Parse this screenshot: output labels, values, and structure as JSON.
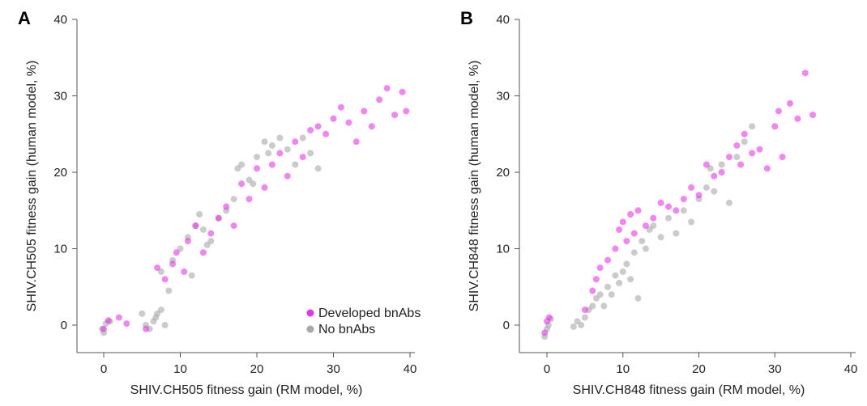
{
  "colors": {
    "developed": "#e535e8",
    "no_bnabs": "#a8a8a8",
    "axis": "#555555"
  },
  "legend": {
    "developed_label": "Developed bnAbs",
    "no_label": "No bnAbs"
  },
  "chart_data": [
    {
      "type": "scatter",
      "panel": "A",
      "xlabel": "SHIV.CH505 fitness gain (RM model, %)",
      "ylabel": "SHIV.CH505 fitness gain (human model, %)",
      "xlim": [
        0,
        40
      ],
      "ylim": [
        0,
        40
      ],
      "xticks": [
        "0",
        "10",
        "20",
        "30",
        "40"
      ],
      "yticks": [
        "0",
        "10",
        "20",
        "30",
        "40"
      ],
      "legend_position": "bottom-right",
      "series": [
        {
          "name": "Developed bnAbs",
          "x": [
            0.0,
            0.6,
            2.0,
            3.0,
            5.5,
            7.0,
            8.0,
            9.0,
            9.5,
            10.5,
            11.0,
            12.0,
            13.0,
            14.0,
            15.0,
            16.0,
            17.0,
            18.0,
            19.0,
            20.0,
            21.0,
            22.0,
            23.0,
            24.0,
            25.0,
            26.0,
            27.0,
            28.0,
            29.0,
            30.0,
            31.0,
            32.0,
            33.0,
            34.0,
            35.0,
            36.0,
            37.0,
            38.0,
            39.0,
            39.5
          ],
          "y": [
            -0.5,
            0.6,
            1.0,
            0.2,
            -0.5,
            7.5,
            6.0,
            8.0,
            9.5,
            7.0,
            11.0,
            13.0,
            9.5,
            12.0,
            14.0,
            15.5,
            13.0,
            18.5,
            16.5,
            20.5,
            18.0,
            21.0,
            22.5,
            19.5,
            24.0,
            22.0,
            25.5,
            26.0,
            25.0,
            27.0,
            28.5,
            26.5,
            24.0,
            28.0,
            26.0,
            29.5,
            31.0,
            27.5,
            30.5,
            28.0
          ]
        },
        {
          "name": "No bnAbs",
          "x": [
            -0.2,
            0.0,
            0.3,
            0.8,
            5.0,
            5.5,
            6.0,
            6.5,
            7.0,
            7.5,
            8.0,
            7.5,
            9.0,
            10.0,
            11.0,
            12.0,
            12.5,
            13.0,
            14.0,
            15.0,
            16.0,
            17.5,
            18.0,
            19.0,
            20.0,
            21.0,
            22.0,
            23.0,
            24.0,
            25.0,
            26.0,
            27.0,
            28.0,
            11.5,
            13.5,
            8.5,
            6.8,
            17.0,
            19.5,
            21.5
          ],
          "y": [
            -0.5,
            -1.0,
            0.2,
            0.5,
            1.5,
            0.0,
            -0.5,
            0.5,
            1.5,
            2.0,
            0.0,
            7.0,
            8.5,
            10.0,
            11.5,
            13.0,
            14.5,
            12.5,
            11.0,
            14.0,
            15.0,
            20.5,
            21.0,
            19.0,
            22.0,
            24.0,
            23.5,
            24.5,
            23.0,
            21.0,
            24.5,
            22.5,
            20.5,
            6.5,
            10.5,
            4.5,
            1.0,
            16.5,
            18.5,
            22.5
          ]
        }
      ]
    },
    {
      "type": "scatter",
      "panel": "B",
      "xlabel": "SHIV.CH848 fitness gain (RM model, %)",
      "ylabel": "SHIV.CH848 fitness gain (human model, %)",
      "xlim": [
        0,
        40
      ],
      "ylim": [
        0,
        40
      ],
      "xticks": [
        "0",
        "10",
        "20",
        "30",
        "40"
      ],
      "yticks": [
        "0",
        "10",
        "20",
        "30",
        "40"
      ],
      "series": [
        {
          "name": "Developed bnAbs",
          "x": [
            -0.3,
            0.0,
            0.3,
            5.0,
            6.0,
            6.5,
            7.0,
            8.0,
            9.0,
            9.5,
            10.0,
            10.5,
            11.0,
            11.5,
            12.0,
            13.0,
            14.0,
            15.0,
            16.0,
            17.0,
            18.0,
            19.0,
            20.0,
            21.0,
            22.0,
            23.0,
            24.0,
            25.0,
            25.5,
            26.0,
            27.0,
            28.0,
            29.0,
            30.0,
            30.5,
            31.0,
            32.0,
            33.0,
            34.0,
            35.0
          ],
          "y": [
            -1.0,
            0.5,
            1.0,
            2.0,
            4.5,
            6.0,
            7.5,
            8.5,
            10.0,
            12.5,
            13.5,
            11.0,
            14.5,
            12.0,
            15.0,
            13.0,
            14.0,
            16.0,
            15.5,
            15.0,
            16.5,
            18.0,
            17.0,
            21.0,
            19.5,
            20.0,
            22.0,
            23.5,
            21.0,
            25.0,
            22.5,
            23.0,
            20.5,
            26.0,
            28.0,
            22.0,
            29.0,
            27.0,
            33.0,
            27.5
          ]
        },
        {
          "name": "No bnAbs",
          "x": [
            -0.3,
            0.0,
            0.2,
            0.5,
            3.5,
            4.0,
            4.5,
            5.0,
            5.5,
            6.0,
            6.5,
            7.0,
            7.5,
            8.0,
            8.5,
            9.0,
            9.5,
            10.0,
            10.5,
            11.0,
            11.5,
            12.0,
            12.5,
            13.0,
            13.5,
            14.0,
            15.0,
            16.0,
            17.0,
            18.0,
            19.0,
            20.0,
            21.0,
            21.5,
            22.0,
            23.0,
            24.0,
            25.0,
            26.0,
            27.0
          ],
          "y": [
            -1.5,
            -0.5,
            0.0,
            0.8,
            -0.2,
            0.5,
            0.0,
            1.0,
            2.0,
            2.5,
            3.5,
            4.0,
            2.5,
            5.0,
            4.0,
            6.5,
            5.5,
            7.0,
            8.0,
            6.0,
            9.5,
            3.5,
            11.0,
            10.0,
            12.5,
            13.0,
            11.5,
            14.0,
            12.0,
            15.0,
            13.5,
            16.5,
            18.0,
            20.5,
            17.5,
            21.0,
            16.0,
            22.0,
            24.0,
            26.0
          ]
        }
      ]
    }
  ]
}
